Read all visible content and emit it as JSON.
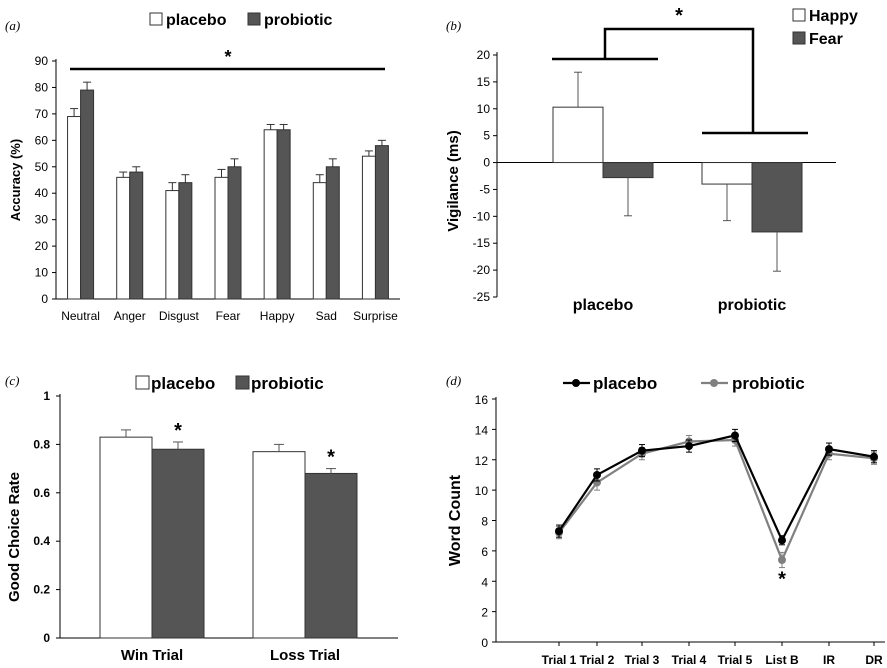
{
  "chart_data": [
    {
      "panel": "(a)",
      "type": "bar",
      "ylabel": "Accuracy (%)",
      "ylim": [
        0,
        90
      ],
      "yticks": [
        0,
        10,
        20,
        30,
        40,
        50,
        60,
        70,
        80,
        90
      ],
      "categories": [
        "Neutral",
        "Anger",
        "Disgust",
        "Fear",
        "Happy",
        "Sad",
        "Surprise"
      ],
      "series": [
        {
          "name": "placebo",
          "values": [
            69,
            46,
            41,
            46,
            64,
            44,
            54
          ],
          "errors": [
            3,
            2,
            3,
            3,
            2,
            3,
            2
          ],
          "color": "#ffffff"
        },
        {
          "name": "probiotic",
          "values": [
            79,
            48,
            44,
            50,
            64,
            50,
            58
          ],
          "errors": [
            3,
            2,
            3,
            3,
            2,
            3,
            2
          ],
          "color": "#555555"
        }
      ],
      "legend": "top",
      "annotations": [
        {
          "text": "*",
          "kind": "significance-bar",
          "span": "all"
        }
      ]
    },
    {
      "panel": "(b)",
      "type": "bar",
      "ylabel": "Vigilance (ms)",
      "ylim": [
        -25,
        20
      ],
      "yticks": [
        -25,
        -20,
        -15,
        -10,
        -5,
        0,
        5,
        10,
        15,
        20
      ],
      "categories": [
        "placebo",
        "probiotic"
      ],
      "series": [
        {
          "name": "Happy",
          "values": [
            10.3,
            -4
          ],
          "errors": [
            6.5,
            6.8
          ],
          "error_dir": [
            1,
            -1
          ],
          "color": "#ffffff"
        },
        {
          "name": "Fear",
          "values": [
            -2.8,
            -12.9
          ],
          "errors": [
            7.1,
            7.3
          ],
          "error_dir": [
            -1,
            -1
          ],
          "color": "#555555"
        }
      ],
      "legend": "top-right",
      "annotations": [
        {
          "text": "*",
          "kind": "interaction-bracket"
        }
      ]
    },
    {
      "panel": "(c)",
      "type": "bar",
      "ylabel": "Good Choice Rate",
      "ylim": [
        0,
        1
      ],
      "yticks": [
        "0",
        "0.2",
        "0.4",
        "0.6",
        "0.8",
        "1"
      ],
      "categories": [
        "Win Trial",
        "Loss Trial"
      ],
      "series": [
        {
          "name": "placebo",
          "values": [
            0.83,
            0.77
          ],
          "errors": [
            0.03,
            0.03
          ],
          "color": "#ffffff"
        },
        {
          "name": "probiotic",
          "values": [
            0.78,
            0.68
          ],
          "errors": [
            0.03,
            0.02
          ],
          "color": "#555555"
        }
      ],
      "legend": "top",
      "annotations": [
        {
          "text": "*",
          "category": "Win Trial",
          "series": "probiotic"
        },
        {
          "text": "*",
          "category": "Loss Trial",
          "series": "probiotic"
        }
      ]
    },
    {
      "panel": "(d)",
      "type": "line",
      "ylabel": "Word Count",
      "ylim": [
        0,
        16
      ],
      "yticks": [
        0,
        2,
        4,
        6,
        8,
        10,
        12,
        14,
        16
      ],
      "categories": [
        "Trial 1",
        "Trial 2",
        "Trial 3",
        "Trial 4",
        "Trial 5",
        "List B",
        "IR",
        "DR"
      ],
      "series": [
        {
          "name": "placebo",
          "values": [
            7.3,
            11.0,
            12.6,
            12.9,
            13.6,
            6.7,
            12.7,
            12.2
          ],
          "errors": [
            0.4,
            0.4,
            0.4,
            0.4,
            0.4,
            0.3,
            0.4,
            0.4
          ],
          "color": "#000000"
        },
        {
          "name": "probiotic",
          "values": [
            7.2,
            10.5,
            12.4,
            13.2,
            13.3,
            5.4,
            12.4,
            12.1
          ],
          "errors": [
            0.4,
            0.5,
            0.4,
            0.4,
            0.4,
            0.5,
            0.4,
            0.4
          ],
          "color": "#808080"
        }
      ],
      "legend": "top",
      "annotations": [
        {
          "text": "*",
          "category": "List B"
        }
      ]
    }
  ]
}
